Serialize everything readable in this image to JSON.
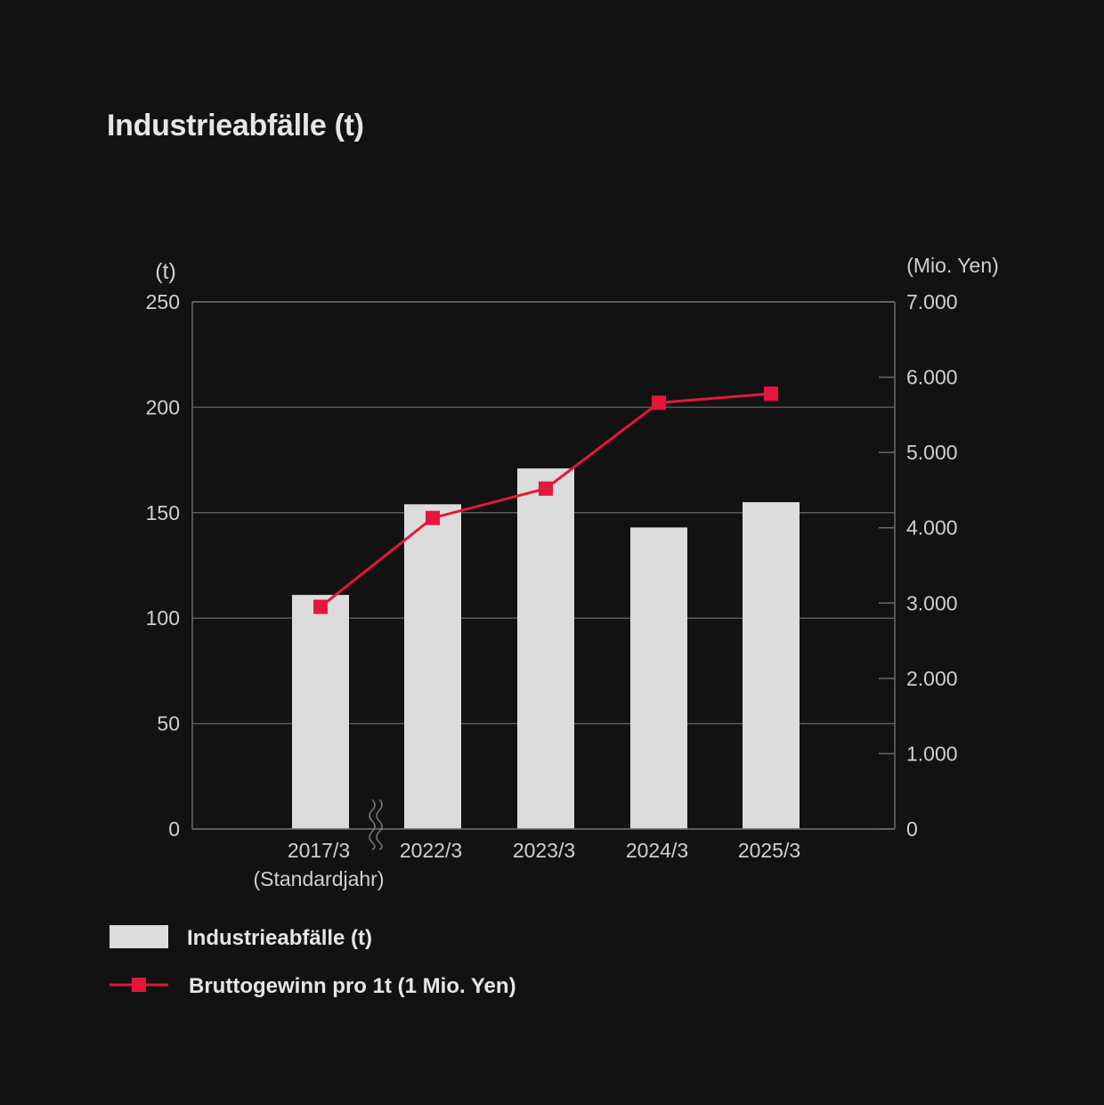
{
  "title": "Industrieabfälle (t)",
  "chart_data": {
    "type": "bar",
    "categories": [
      "2017/3",
      "2022/3",
      "2023/3",
      "2024/3",
      "2025/3"
    ],
    "category_sublabels": [
      "(Standardjahr)",
      "",
      "",
      "",
      ""
    ],
    "axis_break_after_category": 0,
    "y_left": {
      "unit": "(t)",
      "ticks": [
        "0",
        "50",
        "100",
        "150",
        "200",
        "250"
      ],
      "range": [
        0,
        250
      ]
    },
    "y_right": {
      "unit": "(Mio. Yen)",
      "ticks": [
        "0",
        "1.000",
        "2.000",
        "3.000",
        "4.000",
        "5.000",
        "6.000",
        "7.000"
      ],
      "range": [
        0,
        7000
      ]
    },
    "grid": true,
    "series": [
      {
        "name": "Industrieabfälle (t)",
        "type": "bar",
        "axis": "left",
        "color": "#dcdcdc",
        "values": [
          111,
          154,
          171,
          143,
          155
        ]
      },
      {
        "name": "Bruttogewinn pro 1t (1 Mio. Yen)",
        "type": "line",
        "axis": "right",
        "color": "#e8153c",
        "marker": "square",
        "values": [
          2950,
          4130,
          4520,
          5660,
          5780
        ]
      }
    ],
    "legend_position": "bottom-left"
  }
}
